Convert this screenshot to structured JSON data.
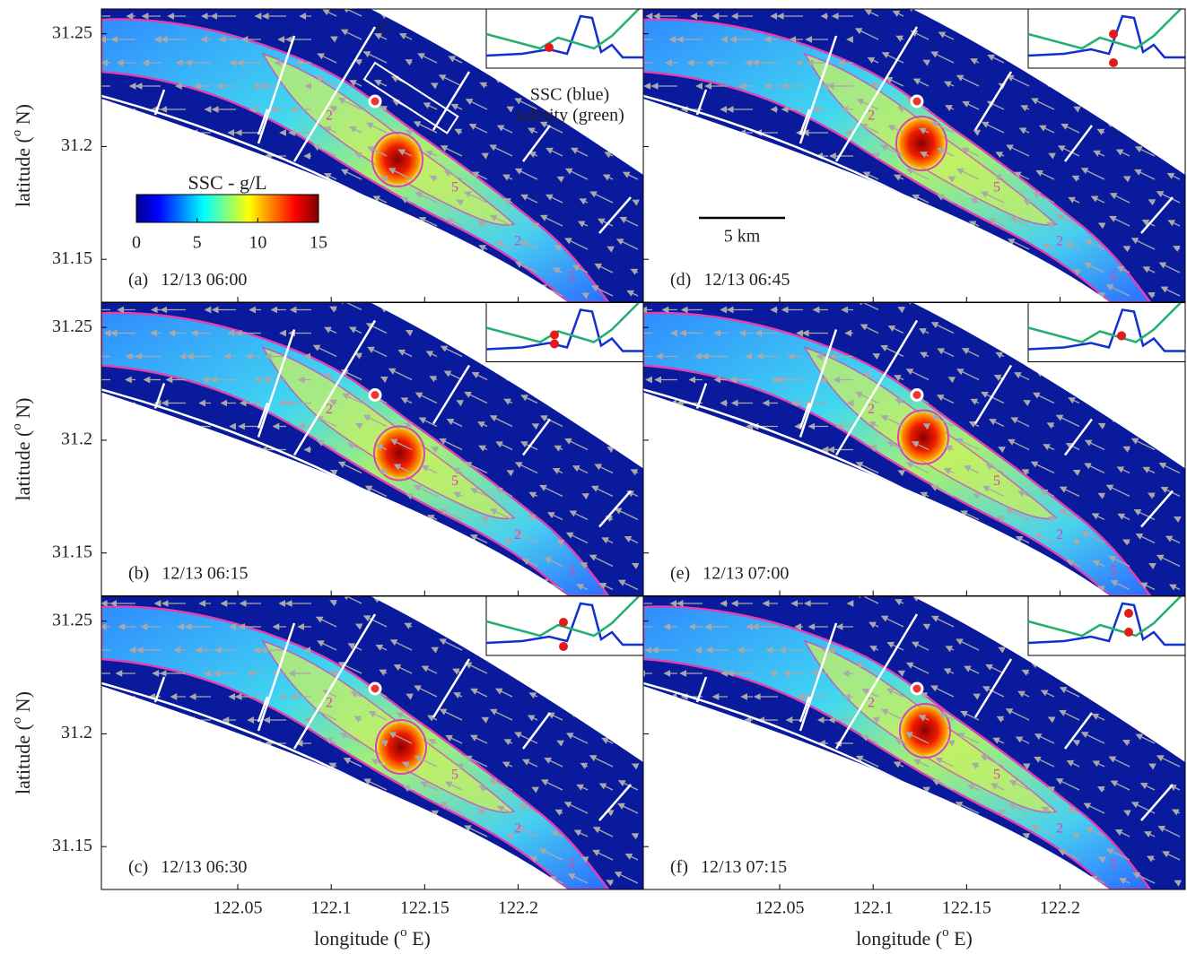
{
  "figure": {
    "panels": [
      {
        "label": "(a)",
        "time": "12/13 06:00"
      },
      {
        "label": "(b)",
        "time": "12/13 06:15"
      },
      {
        "label": "(c)",
        "time": "12/13 06:30"
      },
      {
        "label": "(d)",
        "time": "12/13 06:45"
      },
      {
        "label": "(e)",
        "time": "12/13 07:00"
      },
      {
        "label": "(f)",
        "time": "12/13 07:15"
      }
    ],
    "xlabel": [
      "longitude (",
      "o",
      " E)"
    ],
    "ylabel": [
      "latitude (",
      "o",
      " N)"
    ],
    "xlim": [
      121.977,
      122.267
    ],
    "ylim": [
      31.131,
      31.261
    ],
    "xticks": [
      122.05,
      122.1,
      122.15,
      122.2
    ],
    "yticks": [
      31.15,
      31.2,
      31.25
    ],
    "colorbar": {
      "title": "SSC - g/L",
      "lim": [
        0,
        15
      ],
      "ticks": [
        0,
        5,
        10,
        15
      ]
    },
    "contour_levels": [
      2,
      5
    ],
    "annotations": {
      "section": "C",
      "inset_ssc": "SSC (blue)",
      "inset_salinity": "salinity (green)",
      "scale": "5 km"
    }
  }
}
